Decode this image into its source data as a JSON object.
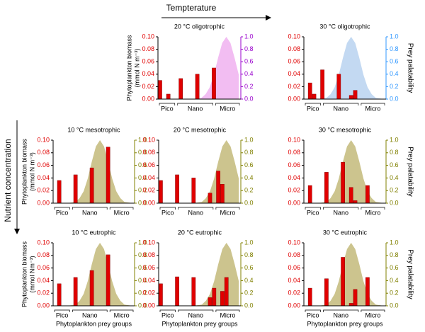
{
  "temperature_label": "Tempterature",
  "nutrient_label": "Nutrient concentration",
  "chart_data": [
    {
      "type": "bar",
      "title": "20 °C oligotrophic",
      "ylabel": [
        "Phytoplankton biomass",
        "(mmol N m⁻³)"
      ],
      "groups": [
        "Pico",
        "Nano",
        "Micro"
      ],
      "categories": [
        null,
        null,
        null,
        null,
        null,
        null,
        null,
        null,
        null,
        null,
        null,
        null,
        null,
        null,
        null,
        null,
        null,
        null,
        null,
        null
      ],
      "series": [
        {
          "color": "#e00000",
          "values": [
            0.03,
            0,
            0.008,
            0,
            0,
            0.033,
            0,
            0,
            0,
            0.04,
            0,
            0,
            0,
            0.05,
            0,
            0,
            0,
            0,
            0,
            0
          ]
        },
        {
          "color": "#f2bdf2",
          "axis": "y2",
          "values": [
            0,
            0,
            0,
            0,
            0,
            0,
            0,
            0,
            0,
            0.01,
            0.02,
            0.08,
            0.19,
            0.39,
            0.66,
            0.9,
            1,
            0.9,
            0.66,
            0.39
          ]
        }
      ],
      "ylim": [
        0,
        0.1
      ],
      "yticks": [
        {
          "value": 0,
          "label": "0.00"
        },
        0.02,
        0.04,
        0.06,
        0.08,
        {
          "value": 0.1,
          "label": "0.10"
        }
      ],
      "y2lim": [
        0,
        1
      ],
      "y2ticks": [
        {
          "value": 0,
          "label": "0.0"
        },
        0.2,
        0.4,
        0.6,
        0.8,
        {
          "value": 1,
          "label": "1.0"
        }
      ],
      "y2color": "#9900cc"
    },
    {
      "type": "bar",
      "title": "30 °C oligotrophic",
      "y2label": "Prey palatability",
      "groups": [
        "Pico",
        "Nano",
        "Micro"
      ],
      "categories": [
        null,
        null,
        null,
        null,
        null,
        null,
        null,
        null,
        null,
        null,
        null,
        null,
        null,
        null,
        null,
        null,
        null,
        null,
        null,
        null
      ],
      "series": [
        {
          "color": "#e00000",
          "values": [
            0,
            0.026,
            0.008,
            0,
            0.047,
            0,
            0,
            0,
            0.04,
            0,
            0,
            0.006,
            0.014,
            0,
            0,
            0,
            0,
            0,
            0,
            0
          ]
        },
        {
          "color": "#c3d9f2",
          "axis": "y2",
          "values": [
            0,
            0,
            0,
            0,
            0.01,
            0.02,
            0.08,
            0.19,
            0.39,
            0.66,
            0.9,
            1,
            0.9,
            0.66,
            0.39,
            0.19,
            0.08,
            0.02,
            0.01,
            0
          ]
        }
      ],
      "ylim": [
        0,
        0.1
      ],
      "yticks": [
        {
          "value": 0,
          "label": "0.00"
        },
        0.02,
        0.04,
        0.06,
        0.08,
        {
          "value": 0.1,
          "label": "0.10"
        }
      ],
      "y2lim": [
        0,
        1
      ],
      "y2ticks": [
        {
          "value": 0,
          "label": "0.0"
        },
        0.2,
        0.4,
        0.6,
        0.8,
        {
          "value": 1,
          "label": "1.0"
        }
      ],
      "y2color": "#3399ff"
    },
    {
      "type": "bar",
      "title": "10 °C mesotrophic",
      "ylabel": [
        "Phytoplankton biomass",
        "(mmol N m⁻³)"
      ],
      "groups": [
        "Pico",
        "Nano",
        "Micro"
      ],
      "categories": [
        null,
        null,
        null,
        null,
        null,
        null,
        null,
        null,
        null,
        null,
        null,
        null,
        null,
        null,
        null,
        null,
        null,
        null,
        null,
        null
      ],
      "series": [
        {
          "color": "#e00000",
          "values": [
            0,
            0.036,
            0,
            0,
            0,
            0.045,
            0,
            0,
            0,
            0.056,
            0,
            0,
            0,
            0.089,
            0,
            0,
            0,
            0,
            0,
            0
          ]
        },
        {
          "color": "#ccc48e",
          "axis": "y2",
          "values": [
            0,
            0,
            0,
            0,
            0.01,
            0.02,
            0.08,
            0.19,
            0.39,
            0.66,
            0.9,
            1,
            0.9,
            0.66,
            0.39,
            0.19,
            0.08,
            0.02,
            0.01,
            0
          ]
        }
      ],
      "ylim": [
        0,
        0.1
      ],
      "yticks": [
        {
          "value": 0,
          "label": "0.00"
        },
        0.02,
        0.04,
        0.06,
        0.08,
        {
          "value": 0.1,
          "label": "0.10"
        }
      ],
      "y2lim": [
        0,
        1
      ],
      "y2ticks": [
        {
          "value": 0,
          "label": "0.0"
        },
        0.2,
        0.4,
        0.6,
        0.8,
        {
          "value": 1,
          "label": "1.0"
        }
      ],
      "y2color": "#808000"
    },
    {
      "type": "bar",
      "title": "20 °C mesotrophic",
      "groups": [
        "Pico",
        "Nano",
        "Micro"
      ],
      "categories": [
        null,
        null,
        null,
        null,
        null,
        null,
        null,
        null,
        null,
        null,
        null,
        null,
        null,
        null,
        null,
        null,
        null,
        null,
        null,
        null
      ],
      "series": [
        {
          "color": "#e00000",
          "values": [
            0.036,
            0,
            0,
            0,
            0.045,
            0,
            0,
            0,
            0.04,
            0,
            0,
            0,
            0.016,
            0,
            0.051,
            0.03,
            0,
            0,
            0,
            0
          ]
        },
        {
          "color": "#ccc48e",
          "axis": "y2",
          "values": [
            0,
            0,
            0,
            0,
            0,
            0,
            0,
            0,
            0,
            0.01,
            0.02,
            0.08,
            0.19,
            0.39,
            0.66,
            0.9,
            1,
            0.9,
            0.66,
            0.39
          ]
        }
      ],
      "ylim": [
        0,
        0.1
      ],
      "yticks": [
        {
          "value": 0,
          "label": "0.00"
        },
        0.02,
        0.04,
        0.06,
        0.08,
        {
          "value": 0.1,
          "label": "0.10"
        }
      ],
      "y2lim": [
        0,
        1
      ],
      "y2ticks": [
        {
          "value": 0,
          "label": "0.0"
        },
        0.2,
        0.4,
        0.6,
        0.8,
        {
          "value": 1,
          "label": "1.0"
        }
      ],
      "y2color": "#808000"
    },
    {
      "type": "bar",
      "title": "30 °C mesotrophic",
      "y2label": "Prey palatability",
      "groups": [
        "Pico",
        "Nano",
        "Micro"
      ],
      "categories": [
        null,
        null,
        null,
        null,
        null,
        null,
        null,
        null,
        null,
        null,
        null,
        null,
        null,
        null,
        null,
        null,
        null,
        null,
        null,
        null
      ],
      "series": [
        {
          "color": "#e00000",
          "values": [
            0,
            0.028,
            0,
            0,
            0,
            0.049,
            0,
            0,
            0,
            0.065,
            0,
            0.025,
            0.004,
            0,
            0,
            0.028,
            0,
            0,
            0,
            0
          ]
        },
        {
          "color": "#ccc48e",
          "axis": "y2",
          "values": [
            0,
            0,
            0,
            0,
            0.01,
            0.02,
            0.08,
            0.19,
            0.39,
            0.66,
            0.9,
            1,
            0.9,
            0.66,
            0.39,
            0.19,
            0.08,
            0.02,
            0.01,
            0
          ]
        }
      ],
      "ylim": [
        0,
        0.1
      ],
      "yticks": [
        {
          "value": 0,
          "label": "0.00"
        },
        0.02,
        0.04,
        0.06,
        0.08,
        {
          "value": 0.1,
          "label": "0.10"
        }
      ],
      "y2lim": [
        0,
        1
      ],
      "y2ticks": [
        {
          "value": 0,
          "label": "0.0"
        },
        0.2,
        0.4,
        0.6,
        0.8,
        {
          "value": 1,
          "label": "1.0"
        }
      ],
      "y2color": "#808000"
    },
    {
      "type": "bar",
      "title": "10 °C eutrophic",
      "ylabel": [
        "Phytoplankton biomass",
        "(mmol Nm⁻³)"
      ],
      "xlabel": "Phytoplankton prey groups",
      "groups": [
        "Pico",
        "Nano",
        "Micro"
      ],
      "categories": [
        null,
        null,
        null,
        null,
        null,
        null,
        null,
        null,
        null,
        null,
        null,
        null,
        null,
        null,
        null,
        null,
        null,
        null,
        null,
        null
      ],
      "series": [
        {
          "color": "#e00000",
          "values": [
            0,
            0.035,
            0,
            0,
            0,
            0.045,
            0,
            0,
            0,
            0.056,
            0,
            0,
            0,
            0.081,
            0,
            0,
            0,
            0,
            0,
            0
          ]
        },
        {
          "color": "#ccc48e",
          "axis": "y2",
          "values": [
            0,
            0,
            0,
            0,
            0.01,
            0.02,
            0.08,
            0.19,
            0.39,
            0.66,
            0.9,
            1,
            0.9,
            0.66,
            0.39,
            0.19,
            0.08,
            0.02,
            0.01,
            0
          ]
        }
      ],
      "ylim": [
        0,
        0.1
      ],
      "yticks": [
        {
          "value": 0,
          "label": "0.00"
        },
        0.02,
        0.04,
        0.06,
        0.08,
        {
          "value": 0.1,
          "label": "0.10"
        }
      ],
      "y2lim": [
        0,
        1
      ],
      "y2ticks": [
        {
          "value": 0,
          "label": "0.0"
        },
        0.2,
        0.4,
        0.6,
        0.8,
        {
          "value": 1,
          "label": "1.0"
        }
      ],
      "y2color": "#808000"
    },
    {
      "type": "bar",
      "title": "20 °C eutrophic",
      "xlabel": "Phytoplankton prey groups",
      "groups": [
        "Pico",
        "Nano",
        "Micro"
      ],
      "categories": [
        null,
        null,
        null,
        null,
        null,
        null,
        null,
        null,
        null,
        null,
        null,
        null,
        null,
        null,
        null,
        null,
        null,
        null,
        null,
        null
      ],
      "series": [
        {
          "color": "#e00000",
          "values": [
            0.035,
            0,
            0,
            0,
            0.046,
            0,
            0,
            0,
            0.045,
            0,
            0,
            0,
            0.013,
            0.028,
            0,
            0.023,
            0.045,
            0,
            0,
            0
          ]
        },
        {
          "color": "#ccc48e",
          "axis": "y2",
          "values": [
            0,
            0,
            0,
            0,
            0,
            0,
            0,
            0,
            0,
            0.01,
            0.02,
            0.08,
            0.19,
            0.39,
            0.66,
            0.9,
            1,
            0.9,
            0.66,
            0.39
          ]
        }
      ],
      "ylim": [
        0,
        0.1
      ],
      "yticks": [
        {
          "value": 0,
          "label": "0.00"
        },
        0.02,
        0.04,
        0.06,
        0.08,
        {
          "value": 0.1,
          "label": "0.10"
        }
      ],
      "y2lim": [
        0,
        1
      ],
      "y2ticks": [
        {
          "value": 0,
          "label": "0.0"
        },
        0.2,
        0.4,
        0.6,
        0.8,
        {
          "value": 1,
          "label": "1.0"
        }
      ],
      "y2color": "#808000"
    },
    {
      "type": "bar",
      "title": "30 °C eutrophic",
      "y2label": "Prey palatability",
      "xlabel": "Phytoplankton prey groups",
      "groups": [
        "Pico",
        "Nano",
        "Micro"
      ],
      "categories": [
        null,
        null,
        null,
        null,
        null,
        null,
        null,
        null,
        null,
        null,
        null,
        null,
        null,
        null,
        null,
        null,
        null,
        null,
        null,
        null
      ],
      "series": [
        {
          "color": "#e00000",
          "values": [
            0,
            0.028,
            0,
            0,
            0,
            0.043,
            0,
            0,
            0,
            0.077,
            0,
            0.004,
            0.026,
            0,
            0,
            0.045,
            0,
            0,
            0,
            0
          ]
        },
        {
          "color": "#ccc48e",
          "axis": "y2",
          "values": [
            0,
            0,
            0,
            0,
            0.01,
            0.02,
            0.08,
            0.19,
            0.39,
            0.66,
            0.9,
            1,
            0.9,
            0.66,
            0.39,
            0.19,
            0.08,
            0.02,
            0.01,
            0
          ]
        }
      ],
      "ylim": [
        0,
        0.1
      ],
      "yticks": [
        {
          "value": 0,
          "label": "0.00"
        },
        0.02,
        0.04,
        0.06,
        0.08,
        {
          "value": 0.1,
          "label": "0.10"
        }
      ],
      "y2lim": [
        0,
        1
      ],
      "y2ticks": [
        {
          "value": 0,
          "label": "0.0"
        },
        0.2,
        0.4,
        0.6,
        0.8,
        {
          "value": 1,
          "label": "1.0"
        }
      ],
      "y2color": "#808000"
    }
  ]
}
